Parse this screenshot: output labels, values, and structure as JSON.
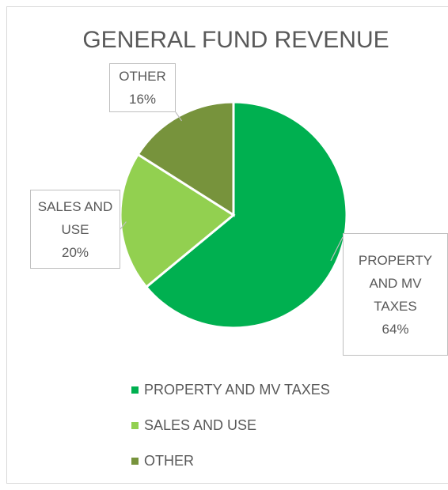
{
  "chart_data": {
    "type": "pie",
    "title": "GENERAL FUND REVENUE",
    "categories": [
      "PROPERTY AND MV TAXES",
      "SALES AND USE",
      "OTHER"
    ],
    "values": [
      64,
      20,
      16
    ],
    "value_labels": [
      "64%",
      "20%",
      "16%"
    ],
    "colors": [
      "#00b050",
      "#92d050",
      "#77933c"
    ],
    "legend": "bottom"
  }
}
